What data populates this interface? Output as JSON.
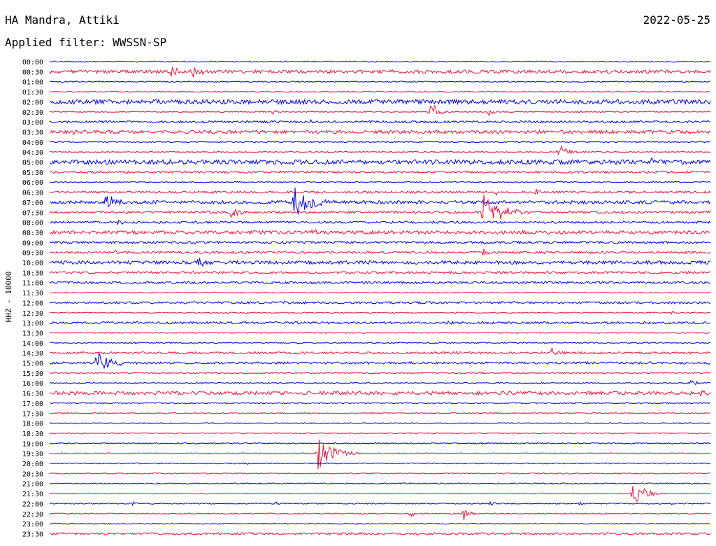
{
  "header": {
    "station": "HA Mandra, Attiki",
    "filter": "Applied filter: WWSSN-SP",
    "date": "2022-05-25"
  },
  "chart_data": {
    "type": "line",
    "title": "HA Mandra, Attiki",
    "subtitle": "Applied filter: WWSSN-SP",
    "date": "2022-05-25",
    "ylabel": "HHZ - 10000",
    "colors": [
      "#0000dd",
      "#e8123c"
    ],
    "row_labels": [
      "00:00",
      "00:30",
      "01:00",
      "01:30",
      "02:00",
      "02:30",
      "03:00",
      "03:30",
      "04:00",
      "04:30",
      "05:00",
      "05:30",
      "06:00",
      "06:30",
      "07:00",
      "07:30",
      "08:00",
      "08:30",
      "09:00",
      "09:30",
      "10:00",
      "10:30",
      "11:00",
      "11:30",
      "12:00",
      "12:30",
      "13:00",
      "13:30",
      "14:00",
      "14:30",
      "15:00",
      "15:30",
      "16:00",
      "16:30",
      "17:00",
      "17:30",
      "18:00",
      "18:30",
      "19:00",
      "19:30",
      "20:00",
      "20:30",
      "21:00",
      "21:30",
      "22:00",
      "22:30",
      "23:00",
      "23:30"
    ],
    "noise": [
      1,
      3,
      1,
      1,
      4,
      1,
      2,
      3,
      1,
      1,
      4,
      2,
      1,
      2,
      3,
      2,
      2,
      3,
      2,
      2,
      3,
      2,
      2,
      1,
      2,
      1,
      2,
      1,
      1,
      2,
      2,
      1,
      1,
      3,
      1,
      1,
      1,
      1,
      1,
      1,
      1,
      1,
      1,
      1,
      1,
      1,
      1,
      2
    ],
    "events": [
      {
        "row": 1,
        "t": 0.185,
        "amp": 9
      },
      {
        "row": 1,
        "t": 0.215,
        "amp": 12
      },
      {
        "row": 4,
        "t": 0.005,
        "amp": 3
      },
      {
        "row": 4,
        "t": 0.91,
        "amp": 4
      },
      {
        "row": 5,
        "t": 0.335,
        "amp": 5
      },
      {
        "row": 5,
        "t": 0.575,
        "amp": 16
      },
      {
        "row": 5,
        "t": 0.665,
        "amp": 8
      },
      {
        "row": 6,
        "t": 0.395,
        "amp": 3
      },
      {
        "row": 7,
        "t": 0.035,
        "amp": 2
      },
      {
        "row": 9,
        "t": 0.77,
        "amp": 14
      },
      {
        "row": 10,
        "t": 0.91,
        "amp": 5
      },
      {
        "row": 11,
        "t": 0.69,
        "amp": 4
      },
      {
        "row": 11,
        "t": 0.97,
        "amp": 3
      },
      {
        "row": 13,
        "t": 0.675,
        "amp": 4
      },
      {
        "row": 13,
        "t": 0.735,
        "amp": 5
      },
      {
        "row": 14,
        "t": 0.085,
        "amp": 14
      },
      {
        "row": 14,
        "t": 0.37,
        "amp": 26
      },
      {
        "row": 15,
        "t": 0.275,
        "amp": 10
      },
      {
        "row": 15,
        "t": 0.655,
        "amp": 30
      },
      {
        "row": 15,
        "t": 0.945,
        "amp": 4
      },
      {
        "row": 15,
        "t": 1.0,
        "amp": 4
      },
      {
        "row": 16,
        "t": 0.105,
        "amp": 4
      },
      {
        "row": 17,
        "t": 0.395,
        "amp": 6
      },
      {
        "row": 19,
        "t": 0.655,
        "amp": 6
      },
      {
        "row": 19,
        "t": 0.1,
        "amp": 3
      },
      {
        "row": 19,
        "t": 0.75,
        "amp": 3
      },
      {
        "row": 20,
        "t": 0.225,
        "amp": 8
      },
      {
        "row": 21,
        "t": 0.97,
        "amp": 3
      },
      {
        "row": 25,
        "t": 0.94,
        "amp": 3
      },
      {
        "row": 26,
        "t": 0.6,
        "amp": 4
      },
      {
        "row": 28,
        "t": 0.13,
        "amp": 3
      },
      {
        "row": 29,
        "t": 0.61,
        "amp": 4
      },
      {
        "row": 29,
        "t": 0.76,
        "amp": 8
      },
      {
        "row": 30,
        "t": 0.07,
        "amp": 22
      },
      {
        "row": 31,
        "t": 0.65,
        "amp": 4
      },
      {
        "row": 32,
        "t": 0.97,
        "amp": 6
      },
      {
        "row": 33,
        "t": 0.185,
        "amp": 3
      },
      {
        "row": 33,
        "t": 0.985,
        "amp": 8
      },
      {
        "row": 39,
        "t": 0.405,
        "amp": 28
      },
      {
        "row": 40,
        "t": 0.3,
        "amp": 3
      },
      {
        "row": 43,
        "t": 0.88,
        "amp": 20
      },
      {
        "row": 44,
        "t": 0.34,
        "amp": 4
      },
      {
        "row": 44,
        "t": 0.665,
        "amp": 4
      },
      {
        "row": 44,
        "t": 0.125,
        "amp": 3
      },
      {
        "row": 44,
        "t": 0.8,
        "amp": 3
      },
      {
        "row": 44,
        "t": 0.94,
        "amp": 2
      },
      {
        "row": 45,
        "t": 0.545,
        "amp": 5
      },
      {
        "row": 45,
        "t": 0.625,
        "amp": 10
      }
    ]
  }
}
